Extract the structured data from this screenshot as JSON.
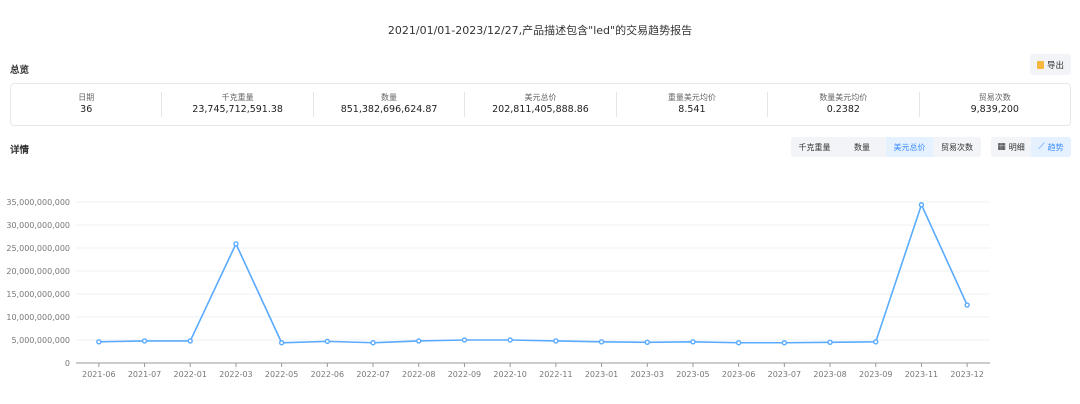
{
  "title": "2021/01/01-2023/12/27,产品描述包含\"led\"的交易趋势报告",
  "overview_label": "总览",
  "detail_label": "详情",
  "export_label": "导出",
  "summary": [
    {
      "label": "日期",
      "value": "36"
    },
    {
      "label": "千克重量",
      "value": "23,745,712,591.38"
    },
    {
      "label": "数量",
      "value": "851,382,696,624.87"
    },
    {
      "label": "美元总价",
      "value": "202,811,405,888.86"
    },
    {
      "label": "重量美元均价",
      "value": "8.541"
    },
    {
      "label": "数量美元均价",
      "value": "0.2382"
    },
    {
      "label": "贸易次数",
      "value": "9,839,200"
    }
  ],
  "metric_tabs": [
    "千克重量",
    "数量",
    "美元总价",
    "贸易次数"
  ],
  "metric_active": "美元总价",
  "view_tabs": [
    {
      "label": "明细",
      "icon": "table-icon"
    },
    {
      "label": "趋势",
      "icon": "line-chart-icon"
    }
  ],
  "view_active": "趋势",
  "colors": {
    "accent": "#3b8cff",
    "line": "#5aabff"
  },
  "chart_data": {
    "type": "line",
    "categories": [
      "2021-06",
      "2021-07",
      "2022-01",
      "2022-03",
      "2022-05",
      "2022-06",
      "2022-07",
      "2022-08",
      "2022-09",
      "2022-10",
      "2022-11",
      "2023-01",
      "2023-03",
      "2023-05",
      "2023-06",
      "2023-07",
      "2023-08",
      "2023-09",
      "2023-11",
      "2023-12"
    ],
    "values": [
      4600000000,
      4800000000,
      4800000000,
      25900000000,
      4400000000,
      4700000000,
      4400000000,
      4800000000,
      5000000000,
      5000000000,
      4800000000,
      4600000000,
      4500000000,
      4600000000,
      4400000000,
      4400000000,
      4500000000,
      4600000000,
      34400000000,
      12600000000
    ],
    "ylim": [
      0,
      35000000000
    ],
    "yticks": [
      "0",
      "5,000,000,000",
      "10,000,000,000",
      "15,000,000,000",
      "20,000,000,000",
      "25,000,000,000",
      "30,000,000,000",
      "35,000,000,000"
    ],
    "grid": true
  }
}
